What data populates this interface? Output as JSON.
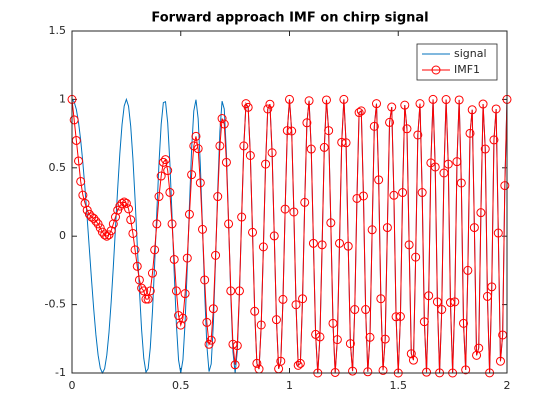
{
  "chart_data": {
    "type": "line",
    "title": "Forward approach IMF on chirp signal",
    "x": [
      0,
      0.01,
      0.02,
      0.03,
      0.04,
      0.05,
      0.06,
      0.07,
      0.08,
      0.09,
      0.1,
      0.11,
      0.12,
      0.13,
      0.14,
      0.15,
      0.16,
      0.17,
      0.18,
      0.19,
      0.2,
      0.21,
      0.22,
      0.23,
      0.24,
      0.25,
      0.26,
      0.27,
      0.28,
      0.29,
      0.3,
      0.31,
      0.32,
      0.33,
      0.34,
      0.35,
      0.36,
      0.37,
      0.38,
      0.39,
      0.4,
      0.41,
      0.42,
      0.43,
      0.44,
      0.45,
      0.46,
      0.47,
      0.48,
      0.49,
      0.5,
      0.51,
      0.52,
      0.53,
      0.54,
      0.55,
      0.56,
      0.57,
      0.58,
      0.59,
      0.6,
      0.61,
      0.62,
      0.63,
      0.64,
      0.65,
      0.66,
      0.67,
      0.68,
      0.69,
      0.7,
      0.71,
      0.72,
      0.73,
      0.74,
      0.75,
      0.76,
      0.77,
      0.78,
      0.79,
      0.8,
      0.81,
      0.82,
      0.83,
      0.84,
      0.85,
      0.86,
      0.87,
      0.88,
      0.89,
      0.9,
      0.91,
      0.92,
      0.93,
      0.94,
      0.95,
      0.96,
      0.97,
      0.98,
      0.99,
      1,
      1.01,
      1.02,
      1.03,
      1.04,
      1.05,
      1.06,
      1.07,
      1.08,
      1.09,
      1.1,
      1.11,
      1.12,
      1.13,
      1.14,
      1.15,
      1.16,
      1.17,
      1.18,
      1.19,
      1.2,
      1.21,
      1.22,
      1.23,
      1.24,
      1.25,
      1.26,
      1.27,
      1.28,
      1.29,
      1.3,
      1.31,
      1.32,
      1.33,
      1.34,
      1.35,
      1.36,
      1.37,
      1.38,
      1.39,
      1.4,
      1.41,
      1.42,
      1.43,
      1.44,
      1.45,
      1.46,
      1.47,
      1.48,
      1.49,
      1.5,
      1.51,
      1.52,
      1.53,
      1.54,
      1.55,
      1.56,
      1.57,
      1.58,
      1.59,
      1.6,
      1.61,
      1.62,
      1.63,
      1.64,
      1.65,
      1.66,
      1.67,
      1.68,
      1.69,
      1.7,
      1.71,
      1.72,
      1.73,
      1.74,
      1.75,
      1.76,
      1.77,
      1.78,
      1.79,
      1.8,
      1.81,
      1.82,
      1.83,
      1.84,
      1.85,
      1.86,
      1.87,
      1.88,
      1.89,
      1.9,
      1.91,
      1.92,
      1.93,
      1.94,
      1.95,
      1.96,
      1.97,
      1.98,
      1.99,
      2
    ],
    "series": [
      {
        "name": "signal",
        "color": "#0072bd",
        "marker": "none",
        "values": [
          1,
          0.982,
          0.926,
          0.832,
          0.701,
          0.536,
          0.342,
          0.128,
          -0.098,
          -0.324,
          -0.536,
          -0.722,
          -0.869,
          -0.965,
          -1,
          -0.969,
          -0.869,
          -0.705,
          -0.483,
          -0.222,
          0.063,
          0.347,
          0.606,
          0.815,
          0.952,
          1,
          0.95,
          0.803,
          0.569,
          0.271,
          -0.063,
          -0.394,
          -0.684,
          -0.893,
          -0.994,
          -0.969,
          -0.815,
          -0.549,
          -0.203,
          0.177,
          0.536,
          0.818,
          0.977,
          0.983,
          0.829,
          0.536,
          0.148,
          -0.271,
          -0.646,
          -0.906,
          -1,
          -0.904,
          -0.629,
          -0.227,
          0.227,
          0.637,
          0.916,
          0.998,
          0.859,
          0.523,
          0.063,
          -0.416,
          -0.8,
          -0.99,
          -0.934,
          -0.637,
          -0.172,
          0.342,
          0.769,
          0.987,
          0.93,
          0.606,
          0.103,
          -0.435,
          -0.845,
          -1,
          -0.843,
          -0.416,
          0.148,
          0.668,
          0.969,
          0.942,
          0.59,
          0.028,
          -0.549,
          -0.93,
          -0.971,
          -0.649,
          -0.078,
          0.527,
          0.93,
          0.965,
          0.61,
          0.002,
          -0.61,
          -0.969,
          -0.914,
          -0.462,
          0.198,
          0.772,
          1,
          0.769,
          0.177,
          -0.501,
          -0.944,
          -0.93,
          -0.457,
          0.247,
          0.829,
          0.99,
          0.637,
          -0.052,
          -0.718,
          -1,
          -0.736,
          -0.063,
          0.649,
          0.996,
          0.772,
          0.098,
          -0.637,
          -0.996,
          -0.756,
          -0.052,
          0.686,
          1,
          0.683,
          -0.073,
          -0.785,
          -0.986,
          -0.536,
          0.276,
          0.904,
          0.916,
          0.294,
          -0.536,
          -0.991,
          -0.739,
          0.047,
          0.803,
          0.969,
          0.412,
          -0.457,
          -0.981,
          -0.752,
          0.063,
          0.832,
          0.944,
          0.299,
          -0.589,
          -1,
          -0.587,
          0.319,
          0.958,
          0.785,
          -0.063,
          -0.859,
          -0.906,
          -0.153,
          0.74,
          0.969,
          0.319,
          -0.625,
          -0.994,
          -0.435,
          0.536,
          1,
          0.506,
          -0.48,
          -0.999,
          -0.536,
          0.462,
          0.999,
          0.527,
          -0.485,
          -1,
          -0.48,
          0.545,
          0.996,
          0.389,
          -0.637,
          -0.977,
          -0.25,
          0.752,
          0.924,
          0.063,
          -0.871,
          -0.818,
          0.172,
          0.966,
          0.637,
          -0.44,
          -0.999,
          -0.37,
          0.704,
          0.93,
          0.023,
          -0.914,
          -0.722,
          0.37,
          1
        ]
      },
      {
        "name": "IMF1",
        "color": "#ff0000",
        "marker": "circle",
        "values": [
          1,
          0.85,
          0.7,
          0.55,
          0.4,
          0.3,
          0.24,
          0.19,
          0.16,
          0.14,
          0.13,
          0.11,
          0.09,
          0.06,
          0.03,
          0.01,
          0,
          0.01,
          0.04,
          0.09,
          0.14,
          0.19,
          0.22,
          0.24,
          0.25,
          0.24,
          0.2,
          0.12,
          0.02,
          -0.1,
          -0.22,
          -0.32,
          -0.38,
          -0.4,
          -0.46,
          -0.46,
          -0.4,
          -0.27,
          -0.1,
          0.09,
          0.29,
          0.44,
          0.54,
          0.56,
          0.48,
          0.32,
          0.09,
          -0.17,
          -0.4,
          -0.58,
          -0.65,
          -0.6,
          -0.42,
          -0.16,
          0.16,
          0.45,
          0.66,
          0.73,
          0.64,
          0.39,
          0.05,
          -0.32,
          -0.63,
          -0.79,
          -0.76,
          -0.53,
          -0.14,
          0.29,
          0.66,
          0.86,
          0.82,
          0.54,
          0.09,
          -0.4,
          -0.79,
          -0.94,
          -0.8,
          -0.4,
          0.14,
          0.66,
          0.969,
          0.942,
          0.59,
          0.028,
          -0.549,
          -0.93,
          -0.971,
          -0.649,
          -0.078,
          0.527,
          0.93,
          0.965,
          0.61,
          0.002,
          -0.61,
          -0.969,
          -0.914,
          -0.462,
          0.198,
          0.772,
          1,
          0.769,
          0.177,
          -0.501,
          -0.944,
          -0.93,
          -0.457,
          0.247,
          0.829,
          0.99,
          0.637,
          -0.052,
          -0.718,
          -1,
          -0.736,
          -0.063,
          0.649,
          0.996,
          0.772,
          0.098,
          -0.637,
          -0.996,
          -0.756,
          -0.052,
          0.686,
          1,
          0.683,
          -0.073,
          -0.785,
          -0.986,
          -0.536,
          0.276,
          0.904,
          0.916,
          0.294,
          -0.536,
          -0.991,
          -0.739,
          0.047,
          0.803,
          0.969,
          0.412,
          -0.457,
          -0.981,
          -0.752,
          0.063,
          0.832,
          0.944,
          0.299,
          -0.589,
          -1,
          -0.587,
          0.319,
          0.958,
          0.785,
          -0.063,
          -0.859,
          -0.906,
          -0.153,
          0.74,
          0.969,
          0.319,
          -0.625,
          -0.994,
          -0.435,
          0.536,
          1,
          0.506,
          -0.48,
          -0.999,
          -0.536,
          0.462,
          0.999,
          0.527,
          -0.485,
          -1,
          -0.48,
          0.545,
          0.996,
          0.389,
          -0.637,
          -0.977,
          -0.25,
          0.752,
          0.924,
          0.063,
          -0.871,
          -0.818,
          0.172,
          0.966,
          0.637,
          -0.44,
          -0.999,
          -0.37,
          0.704,
          0.93,
          0.023,
          -0.914,
          -0.722,
          0.37,
          1
        ]
      }
    ],
    "xlim": [
      0,
      2
    ],
    "xticks": [
      0,
      0.5,
      1,
      1.5,
      2
    ],
    "ylim": [
      -1,
      1.5
    ],
    "yticks": [
      -1,
      -0.5,
      0,
      0.5,
      1,
      1.5
    ],
    "grid": false,
    "legend": "northeast"
  }
}
